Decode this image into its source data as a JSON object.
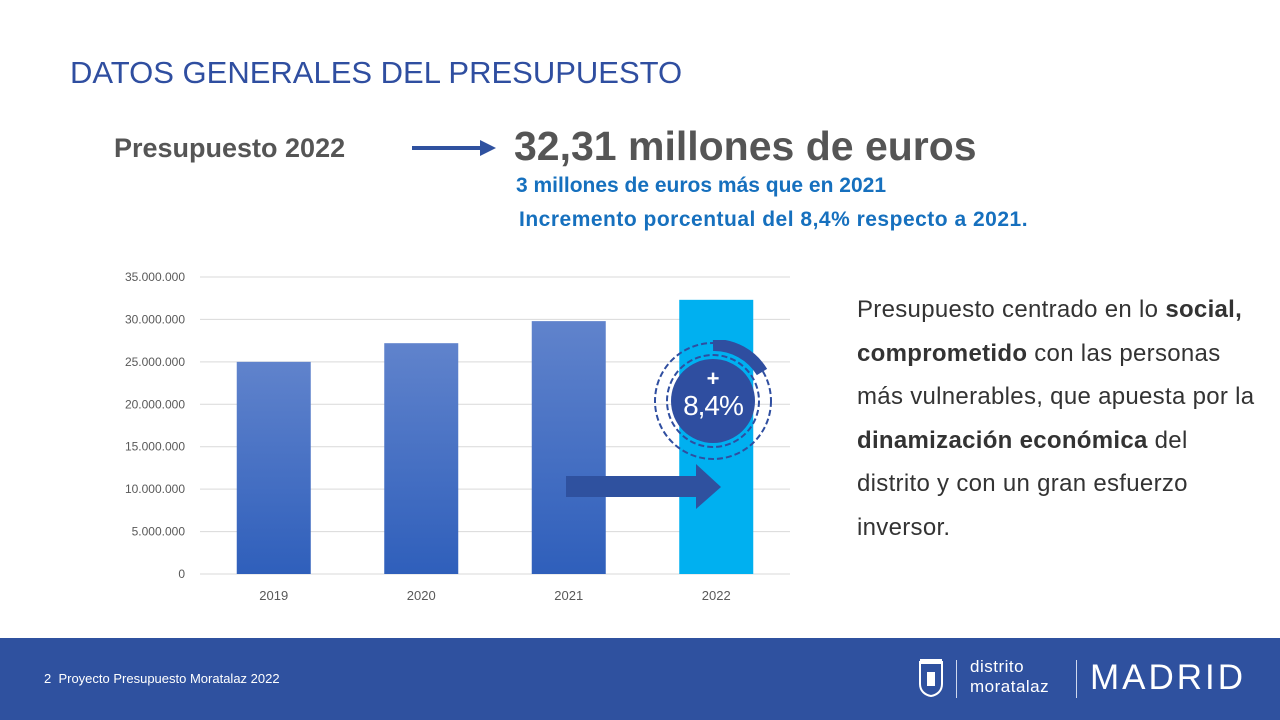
{
  "title": "DATOS GENERALES DEL PRESUPUESTO",
  "budget_label": "Presupuesto 2022",
  "budget_value": "32,31 millones de euros",
  "sub1": "3 millones de euros más que en 2021",
  "sub2": "Incremento porcentual del 8,4% respecto a 2021.",
  "badge": {
    "plus": "+",
    "value": "8,4%"
  },
  "description": {
    "p1": "Presupuesto centrado en lo ",
    "b1": "social, comprometido",
    "p2": " con las personas más vulnerables, que apuesta por la ",
    "b2": "dinamización económica",
    "p3": " del distrito y con un gran esfuerzo inversor."
  },
  "footer": {
    "text": "2  Proyecto Presupuesto Moratalaz 2022",
    "district1": "distrito",
    "district2": "moratalaz",
    "city": "MADRID"
  },
  "colors": {
    "title": "#2f4ea0",
    "bar": "#4472c4",
    "highlight": "#00b0f0",
    "footer": "#2f519f"
  },
  "chart_data": {
    "type": "bar",
    "categories": [
      "2019",
      "2020",
      "2021",
      "2022"
    ],
    "values": [
      25000000,
      27200000,
      29800000,
      32310000
    ],
    "ylim": [
      0,
      35000000
    ],
    "yticks": [
      "0",
      "5.000.000",
      "10.000.000",
      "15.000.000",
      "20.000.000",
      "25.000.000",
      "30.000.000",
      "35.000.000"
    ],
    "grid": true,
    "highlight_category": "2022"
  }
}
